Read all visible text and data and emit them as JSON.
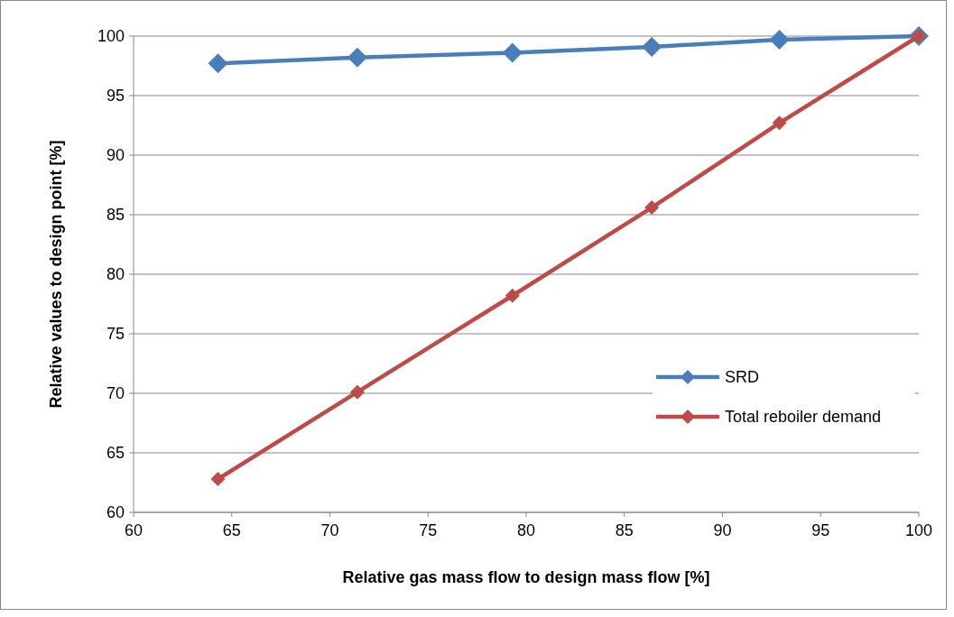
{
  "chart_data": {
    "type": "line",
    "xlabel": "Relative gas mass flow to design  mass flow [%]",
    "ylabel": "Relative values to design point [%]",
    "x": [
      64.3,
      71.4,
      79.3,
      86.4,
      92.9,
      100
    ],
    "series": [
      {
        "name": "SRD",
        "color": "#4a7ebb",
        "values": [
          97.7,
          98.2,
          98.6,
          99.1,
          99.7,
          100
        ]
      },
      {
        "name": "Total reboiler demand",
        "color": "#be4b48",
        "values": [
          62.8,
          70.1,
          78.2,
          85.6,
          92.7,
          100
        ]
      }
    ],
    "xlim": [
      60,
      100
    ],
    "xticks": [
      60,
      65,
      70,
      75,
      80,
      85,
      90,
      95,
      100
    ],
    "ylim": [
      60,
      100
    ],
    "yticks": [
      60,
      65,
      70,
      75,
      80,
      85,
      90,
      95,
      100
    ],
    "grid": "y",
    "legend": "right",
    "marker": "diamond",
    "line_style": "solid"
  }
}
